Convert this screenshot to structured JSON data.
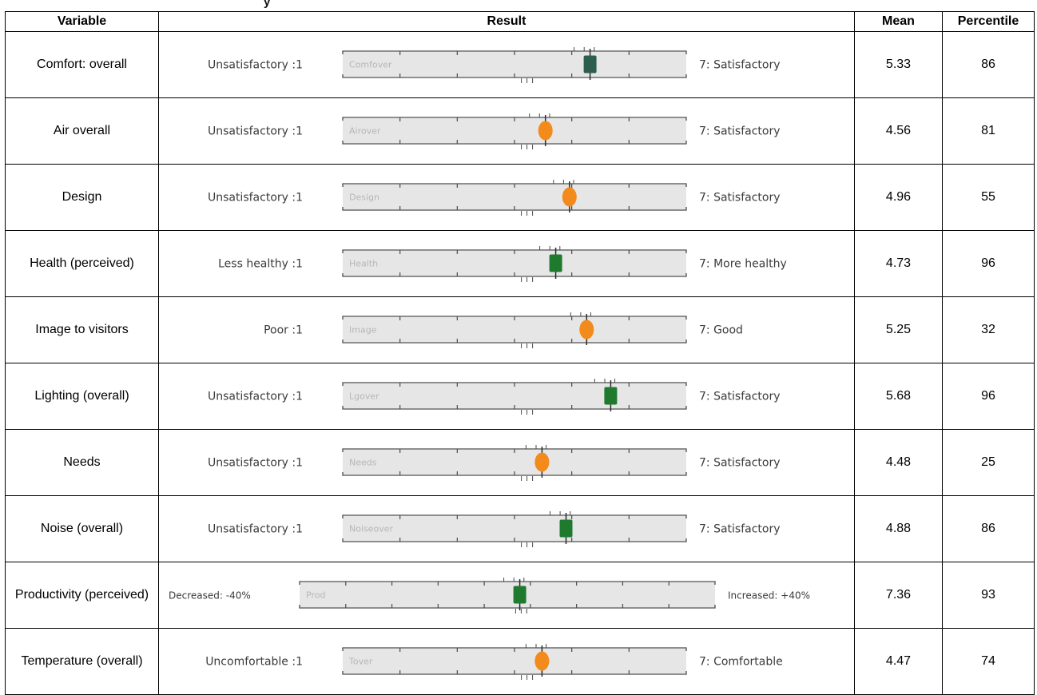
{
  "header": {
    "partial_title": "y"
  },
  "columns": {
    "variable": "Variable",
    "result": "Result",
    "mean": "Mean",
    "percentile": "Percentile"
  },
  "colors": {
    "green": "#1f7a2e",
    "dark_teal": "#2d5d4f",
    "orange": "#f28a1c"
  },
  "rows": [
    {
      "variable": "Comfort: overall",
      "left_label": "Unsatisfactory :1",
      "right_label": "7: Satisfactory",
      "bar_text": "Comfover",
      "mean": "5.33",
      "percentile": "86",
      "marker_color": "dark_teal",
      "marker_position": 0.72,
      "wide": false
    },
    {
      "variable": "Air overall",
      "left_label": "Unsatisfactory :1",
      "right_label": "7: Satisfactory",
      "bar_text": "Airover",
      "mean": "4.56",
      "percentile": "81",
      "marker_color": "orange",
      "marker_position": 0.59,
      "wide": false
    },
    {
      "variable": "Design",
      "left_label": "Unsatisfactory :1",
      "right_label": "7: Satisfactory",
      "bar_text": "Design",
      "mean": "4.96",
      "percentile": "55",
      "marker_color": "orange",
      "marker_position": 0.66,
      "wide": false
    },
    {
      "variable": "Health (perceived)",
      "left_label": "Less healthy :1",
      "right_label": "7: More healthy",
      "bar_text": "Health",
      "mean": "4.73",
      "percentile": "96",
      "marker_color": "green",
      "marker_position": 0.62,
      "wide": false
    },
    {
      "variable": "Image to visitors",
      "left_label": "Poor :1",
      "right_label": "7: Good",
      "bar_text": "Image",
      "mean": "5.25",
      "percentile": "32",
      "marker_color": "orange",
      "marker_position": 0.71,
      "wide": false
    },
    {
      "variable": "Lighting (overall)",
      "left_label": "Unsatisfactory :1",
      "right_label": "7: Satisfactory",
      "bar_text": "Lgover",
      "mean": "5.68",
      "percentile": "96",
      "marker_color": "green",
      "marker_position": 0.78,
      "wide": false
    },
    {
      "variable": "Needs",
      "left_label": "Unsatisfactory :1",
      "right_label": "7: Satisfactory",
      "bar_text": "Needs",
      "mean": "4.48",
      "percentile": "25",
      "marker_color": "orange",
      "marker_position": 0.58,
      "wide": false
    },
    {
      "variable": "Noise (overall)",
      "left_label": "Unsatisfactory :1",
      "right_label": "7: Satisfactory",
      "bar_text": "Noiseover",
      "mean": "4.88",
      "percentile": "86",
      "marker_color": "green",
      "marker_position": 0.65,
      "wide": false
    },
    {
      "variable": "Productivity (perceived)",
      "left_label": "Decreased: -40%",
      "right_label": "Increased: +40%",
      "bar_text": "Prod",
      "mean": "7.36",
      "percentile": "93",
      "marker_color": "green",
      "marker_position": 0.53,
      "wide": true
    },
    {
      "variable": "Temperature (overall)",
      "left_label": "Uncomfortable :1",
      "right_label": "7: Comfortable",
      "bar_text": "Tover",
      "mean": "4.47",
      "percentile": "74",
      "marker_color": "orange",
      "marker_position": 0.58,
      "wide": false
    }
  ]
}
